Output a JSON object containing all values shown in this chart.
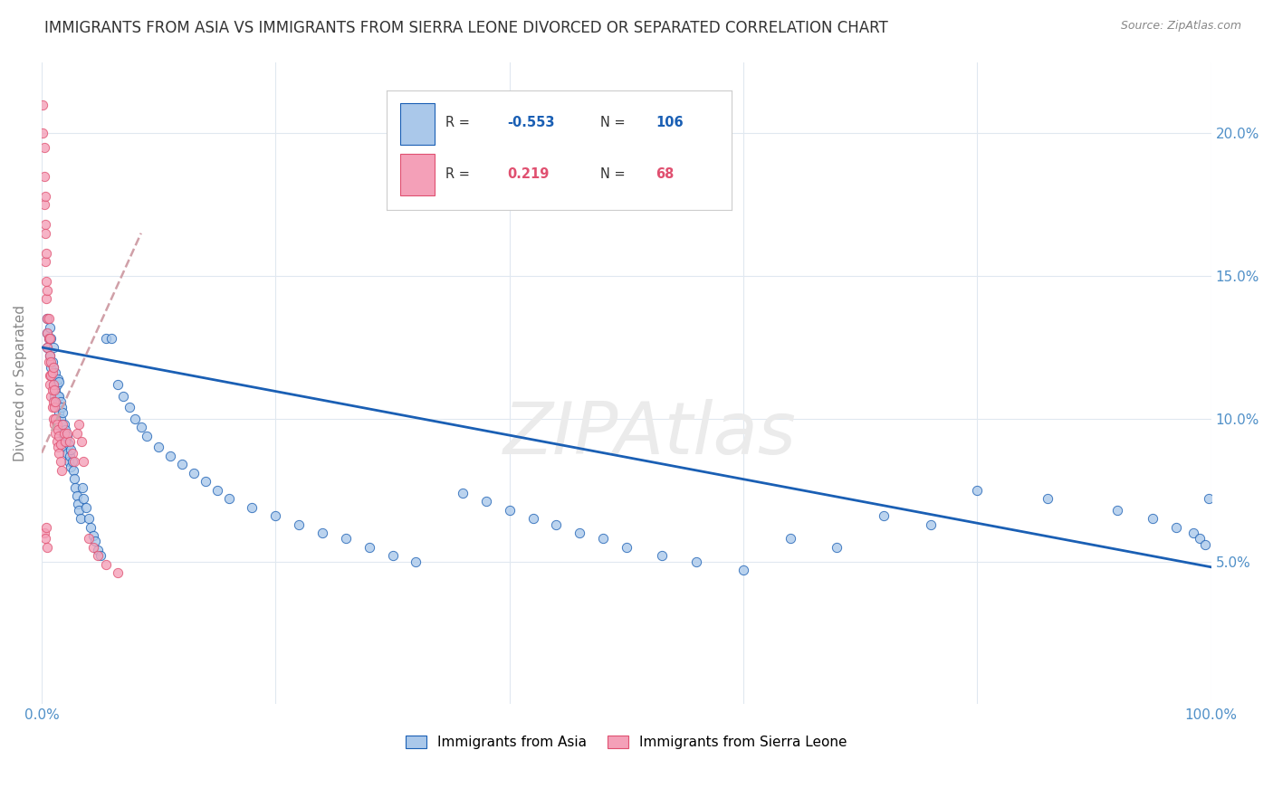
{
  "title": "IMMIGRANTS FROM ASIA VS IMMIGRANTS FROM SIERRA LEONE DIVORCED OR SEPARATED CORRELATION CHART",
  "source": "Source: ZipAtlas.com",
  "ylabel": "Divorced or Separated",
  "blue_R": -0.553,
  "blue_N": 106,
  "pink_R": 0.219,
  "pink_N": 68,
  "blue_color": "#aac8ea",
  "pink_color": "#f4a0b8",
  "blue_line_color": "#1a5fb4",
  "pink_line_color": "#e05070",
  "pink_reg_color": "#d08090",
  "blue_label": "Immigrants from Asia",
  "pink_label": "Immigrants from Sierra Leone",
  "watermark": "ZIPAtlas",
  "background_color": "#ffffff",
  "grid_color": "#e0e8f0",
  "title_fontsize": 12,
  "axis_label_color": "#5090c8",
  "xlim": [
    0,
    1.0
  ],
  "ylim": [
    0.0,
    0.225
  ],
  "blue_scatter_x": [
    0.005,
    0.005,
    0.005,
    0.006,
    0.007,
    0.007,
    0.008,
    0.008,
    0.009,
    0.009,
    0.01,
    0.01,
    0.01,
    0.011,
    0.011,
    0.012,
    0.012,
    0.013,
    0.013,
    0.014,
    0.014,
    0.015,
    0.015,
    0.015,
    0.016,
    0.016,
    0.017,
    0.017,
    0.018,
    0.018,
    0.019,
    0.019,
    0.02,
    0.02,
    0.021,
    0.022,
    0.022,
    0.023,
    0.023,
    0.024,
    0.025,
    0.025,
    0.026,
    0.027,
    0.028,
    0.029,
    0.03,
    0.031,
    0.032,
    0.033,
    0.035,
    0.036,
    0.038,
    0.04,
    0.042,
    0.044,
    0.046,
    0.048,
    0.05,
    0.055,
    0.06,
    0.065,
    0.07,
    0.075,
    0.08,
    0.085,
    0.09,
    0.1,
    0.11,
    0.12,
    0.13,
    0.14,
    0.15,
    0.16,
    0.18,
    0.2,
    0.22,
    0.24,
    0.26,
    0.28,
    0.3,
    0.32,
    0.36,
    0.38,
    0.4,
    0.42,
    0.44,
    0.46,
    0.48,
    0.5,
    0.53,
    0.56,
    0.6,
    0.64,
    0.68,
    0.72,
    0.76,
    0.8,
    0.86,
    0.92,
    0.95,
    0.97,
    0.985,
    0.99,
    0.995,
    0.998
  ],
  "blue_scatter_y": [
    0.13,
    0.125,
    0.135,
    0.128,
    0.132,
    0.122,
    0.118,
    0.128,
    0.115,
    0.12,
    0.112,
    0.118,
    0.125,
    0.108,
    0.114,
    0.11,
    0.116,
    0.105,
    0.112,
    0.108,
    0.114,
    0.102,
    0.108,
    0.113,
    0.1,
    0.106,
    0.098,
    0.104,
    0.095,
    0.102,
    0.093,
    0.098,
    0.09,
    0.096,
    0.092,
    0.088,
    0.094,
    0.085,
    0.091,
    0.087,
    0.083,
    0.089,
    0.085,
    0.082,
    0.079,
    0.076,
    0.073,
    0.07,
    0.068,
    0.065,
    0.076,
    0.072,
    0.069,
    0.065,
    0.062,
    0.059,
    0.057,
    0.054,
    0.052,
    0.128,
    0.128,
    0.112,
    0.108,
    0.104,
    0.1,
    0.097,
    0.094,
    0.09,
    0.087,
    0.084,
    0.081,
    0.078,
    0.075,
    0.072,
    0.069,
    0.066,
    0.063,
    0.06,
    0.058,
    0.055,
    0.052,
    0.05,
    0.074,
    0.071,
    0.068,
    0.065,
    0.063,
    0.06,
    0.058,
    0.055,
    0.052,
    0.05,
    0.047,
    0.058,
    0.055,
    0.066,
    0.063,
    0.075,
    0.072,
    0.068,
    0.065,
    0.062,
    0.06,
    0.058,
    0.056,
    0.072
  ],
  "pink_scatter_x": [
    0.001,
    0.001,
    0.002,
    0.002,
    0.002,
    0.003,
    0.003,
    0.003,
    0.003,
    0.004,
    0.004,
    0.004,
    0.005,
    0.005,
    0.005,
    0.005,
    0.006,
    0.006,
    0.006,
    0.007,
    0.007,
    0.007,
    0.007,
    0.008,
    0.008,
    0.008,
    0.009,
    0.009,
    0.009,
    0.01,
    0.01,
    0.01,
    0.01,
    0.011,
    0.011,
    0.011,
    0.012,
    0.012,
    0.012,
    0.013,
    0.013,
    0.014,
    0.014,
    0.015,
    0.015,
    0.016,
    0.016,
    0.017,
    0.018,
    0.019,
    0.02,
    0.022,
    0.024,
    0.026,
    0.028,
    0.03,
    0.032,
    0.034,
    0.036,
    0.04,
    0.044,
    0.048,
    0.055,
    0.065,
    0.002,
    0.003,
    0.004,
    0.005
  ],
  "pink_scatter_y": [
    0.2,
    0.21,
    0.185,
    0.195,
    0.175,
    0.168,
    0.178,
    0.155,
    0.165,
    0.148,
    0.158,
    0.142,
    0.135,
    0.145,
    0.125,
    0.13,
    0.12,
    0.128,
    0.135,
    0.115,
    0.122,
    0.128,
    0.112,
    0.108,
    0.115,
    0.12,
    0.104,
    0.11,
    0.116,
    0.1,
    0.106,
    0.112,
    0.118,
    0.098,
    0.104,
    0.11,
    0.095,
    0.1,
    0.106,
    0.092,
    0.098,
    0.09,
    0.096,
    0.088,
    0.094,
    0.085,
    0.091,
    0.082,
    0.098,
    0.095,
    0.092,
    0.095,
    0.092,
    0.088,
    0.085,
    0.095,
    0.098,
    0.092,
    0.085,
    0.058,
    0.055,
    0.052,
    0.049,
    0.046,
    0.06,
    0.058,
    0.062,
    0.055
  ]
}
